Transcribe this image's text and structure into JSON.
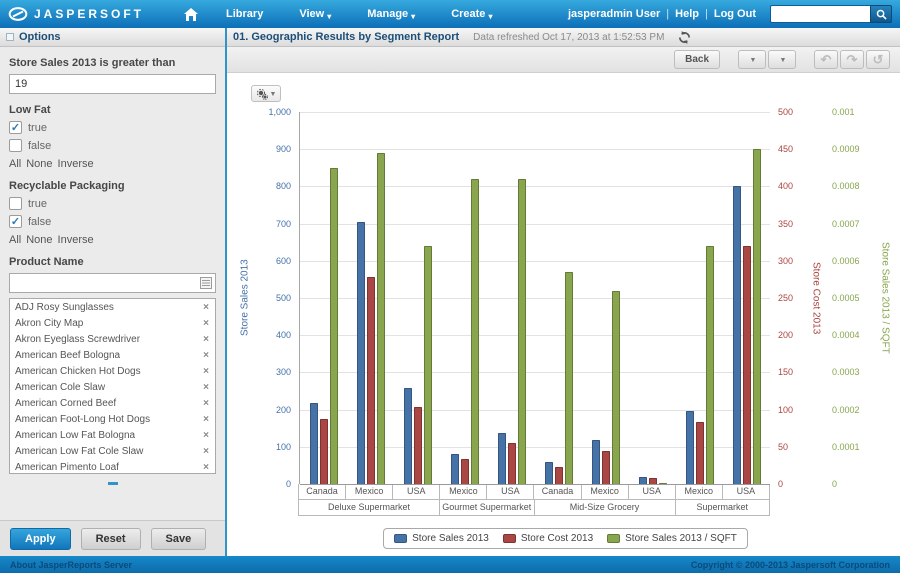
{
  "navbar": {
    "logo": "JASPERSOFT",
    "menu_items": [
      {
        "label": "Library",
        "caret": false
      },
      {
        "label": "View",
        "caret": true
      },
      {
        "label": "Manage",
        "caret": true
      },
      {
        "label": "Create",
        "caret": true
      }
    ],
    "user": "jasperadmin User",
    "help": "Help",
    "logout": "Log Out",
    "search_value": ""
  },
  "options_panel": {
    "title": "Options",
    "sales_filter": {
      "label": "Store Sales 2013 is greater than",
      "value": "19"
    },
    "low_fat": {
      "label": "Low Fat",
      "options": [
        {
          "label": "true",
          "checked": true
        },
        {
          "label": "false",
          "checked": false
        }
      ],
      "links": [
        "All",
        "None",
        "Inverse"
      ]
    },
    "recyclable": {
      "label": "Recyclable Packaging",
      "options": [
        {
          "label": "true",
          "checked": false
        },
        {
          "label": "false",
          "checked": true
        }
      ],
      "links": [
        "All",
        "None",
        "Inverse"
      ]
    },
    "product": {
      "label": "Product Name",
      "search_value": "",
      "items": [
        "ADJ Rosy Sunglasses",
        "Akron City Map",
        "Akron Eyeglass Screwdriver",
        "American Beef Bologna",
        "American Chicken Hot Dogs",
        "American Cole Slaw",
        "American Corned Beef",
        "American Foot-Long Hot Dogs",
        "American Low Fat Bologna",
        "American Low Fat Cole Slaw",
        "American Pimento Loaf"
      ]
    },
    "apply_label": "Apply",
    "reset_label": "Reset",
    "save_label": "Save"
  },
  "report": {
    "title": "01. Geographic Results by Segment Report",
    "refreshed": "Data refreshed Oct 17, 2013 at 1:52:53 PM",
    "back_label": "Back"
  },
  "chart_data": {
    "type": "bar",
    "title": "",
    "grid": true,
    "legend_position": "bottom",
    "x_labels": [
      "Canada",
      "Mexico",
      "USA",
      "Mexico",
      "USA",
      "Canada",
      "Mexico",
      "USA",
      "Mexico",
      "USA"
    ],
    "segment_groups": [
      {
        "label": "Deluxe Supermarket",
        "span": 3
      },
      {
        "label": "Gourmet Supermarket",
        "span": 2
      },
      {
        "label": "Mid-Size Grocery",
        "span": 3
      },
      {
        "label": "Supermarket",
        "span": 2
      }
    ],
    "series": [
      {
        "name": "Store Sales 2013",
        "color": "#4572A7",
        "border": "#35567f",
        "axis": "left",
        "values": [
          218,
          705,
          258,
          80,
          138,
          60,
          118,
          20,
          196,
          800
        ]
      },
      {
        "name": "Store Cost 2013",
        "color": "#AA4643",
        "border": "#7d332f",
        "axis": "right_cost",
        "values": [
          88,
          278,
          104,
          33,
          55,
          23,
          45,
          8,
          84,
          320
        ]
      },
      {
        "name": "Store Sales 2013 / SQFT",
        "color": "#89A54E",
        "border": "#647a37",
        "axis": "right_sqft",
        "values": [
          0.00085,
          0.00089,
          0.00064,
          0.00082,
          0.00082,
          0.00057,
          0.00052,
          0,
          0.00064,
          0.0009
        ]
      }
    ],
    "axes": {
      "left": {
        "title": "Store Sales 2013",
        "color": "#4572A7",
        "min": 0,
        "max": 1000,
        "ticks": [
          "1,000",
          "900",
          "800",
          "700",
          "600",
          "500",
          "400",
          "300",
          "200",
          "100",
          "0"
        ]
      },
      "right_cost": {
        "title": "Store Cost 2013",
        "color": "#AA4643",
        "min": 0,
        "max": 500,
        "ticks": [
          "500",
          "450",
          "400",
          "350",
          "300",
          "250",
          "200",
          "150",
          "100",
          "50",
          "0"
        ]
      },
      "right_sqft": {
        "title": "Store Sales 2013 / SQFT",
        "color": "#89A54E",
        "min": 0,
        "max": 0.001,
        "ticks": [
          "0.001",
          "0.0009",
          "0.0008",
          "0.0007",
          "0.0006",
          "0.0005",
          "0.0004",
          "0.0003",
          "0.0002",
          "0.0001",
          "0"
        ]
      }
    },
    "legend": [
      "Store Sales 2013",
      "Store Cost 2013",
      "Store Sales 2013 / SQFT"
    ]
  },
  "footer": {
    "about": "About JasperReports Server",
    "copyright": "Copyright © 2000-2013 Jaspersoft Corporation"
  }
}
